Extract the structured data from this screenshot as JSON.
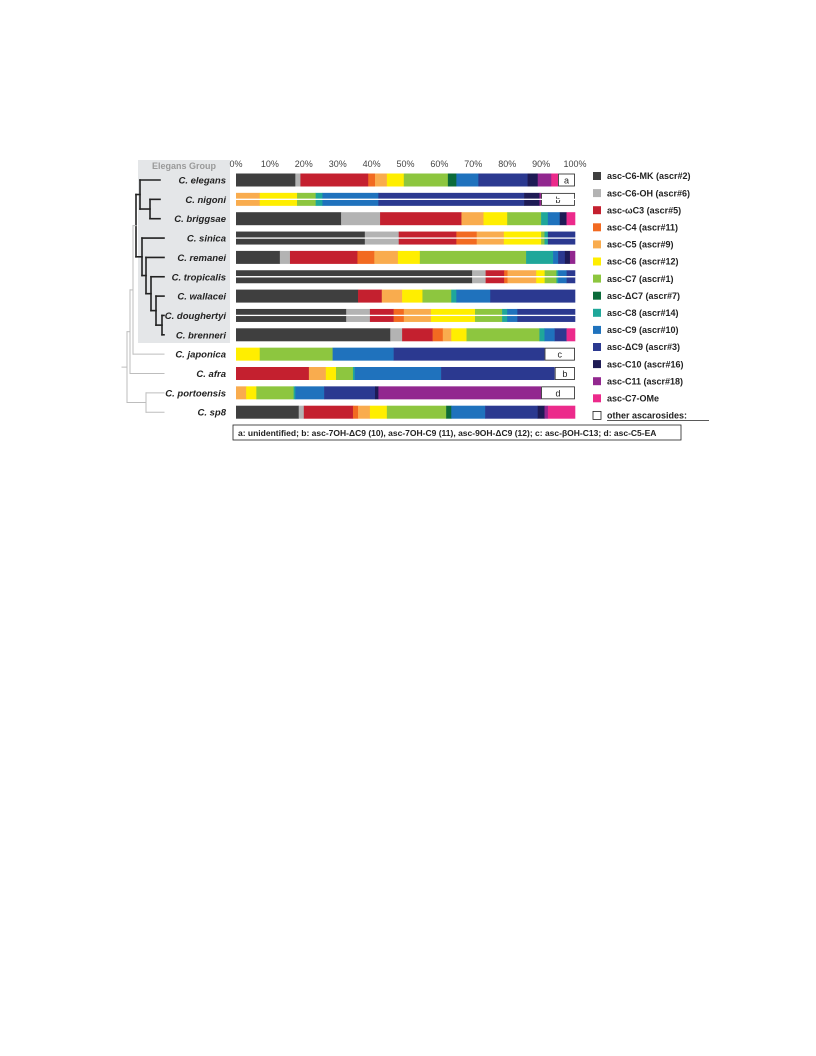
{
  "chart_data": {
    "type": "stacked-bar-horizontal",
    "group_label": "Elegans Group",
    "x_ticks": [
      "0%",
      "10%",
      "20%",
      "30%",
      "40%",
      "50%",
      "60%",
      "70%",
      "80%",
      "90%",
      "100%"
    ],
    "xlim": [
      0,
      100
    ],
    "components": [
      {
        "key": "MK",
        "name": "asc-C6-MK (ascr#2)",
        "color": "#3f3f3f"
      },
      {
        "key": "OH6",
        "name": "asc-C6-OH (ascr#6)",
        "color": "#b3b3b3"
      },
      {
        "key": "wC3",
        "name": "asc-ωC3 (ascr#5)",
        "color": "#c4202f"
      },
      {
        "key": "C4",
        "name": "asc-C4 (ascr#11)",
        "color": "#f26a21"
      },
      {
        "key": "C5",
        "name": "asc-C5 (ascr#9)",
        "color": "#f9ac4e"
      },
      {
        "key": "C6",
        "name": "asc-C6 (ascr#12)",
        "color": "#ffee00"
      },
      {
        "key": "C7",
        "name": "asc-C7 (ascr#1)",
        "color": "#8dc63f"
      },
      {
        "key": "dC7",
        "name": "asc-ΔC7 (ascr#7)",
        "color": "#0b6b3a"
      },
      {
        "key": "C8",
        "name": "asc-C8 (ascr#14)",
        "color": "#1fa79a"
      },
      {
        "key": "C9",
        "name": "asc-C9 (ascr#10)",
        "color": "#1f72bd"
      },
      {
        "key": "dC9",
        "name": "asc-ΔC9 (ascr#3)",
        "color": "#2b3990"
      },
      {
        "key": "C10",
        "name": "asc-C10 (ascr#16)",
        "color": "#1e1b55"
      },
      {
        "key": "C11",
        "name": "asc-C11 (ascr#18)",
        "color": "#92278f"
      },
      {
        "key": "OMe",
        "name": "asc-C7-OMe",
        "color": "#ec2a8b"
      },
      {
        "key": "other",
        "name": "other ascarosides:",
        "color": "#ffffff"
      }
    ],
    "series": [
      {
        "name": "C. elegans",
        "in_group": true,
        "double": false,
        "label": "a",
        "values": {
          "MK": 17.5,
          "OH6": 1.5,
          "wC3": 20,
          "C4": 2,
          "C5": 3.5,
          "C6": 5,
          "C7": 13,
          "dC7": 2.5,
          "C9": 6.5,
          "dC9": 14.5,
          "C10": 3,
          "C11": 4,
          "OMe": 2,
          "other": 5
        }
      },
      {
        "name": "C. nigoni",
        "in_group": true,
        "double": true,
        "label": "b",
        "values": {
          "C5": 7,
          "C6": 11,
          "C7": 5.5,
          "C8": 2,
          "C9": 16.5,
          "dC9": 43,
          "C10": 4.5,
          "C11": 0.5,
          "other": 10
        }
      },
      {
        "name": "C. briggsae",
        "in_group": true,
        "double": false,
        "label": "",
        "values": {
          "MK": 31,
          "OH6": 11.5,
          "wC3": 24,
          "C5": 6.5,
          "C6": 7,
          "C7": 10,
          "C8": 2,
          "C9": 3.5,
          "C10": 2,
          "OMe": 2.5
        }
      },
      {
        "name": "C. sinica",
        "in_group": true,
        "double": true,
        "label": "",
        "values": {
          "MK": 38,
          "OH6": 10,
          "wC3": 17,
          "C4": 6,
          "C5": 8,
          "C6": 11,
          "C7": 1,
          "C8": 1,
          "dC9": 8
        }
      },
      {
        "name": "C. remanei",
        "in_group": true,
        "double": false,
        "label": "",
        "values": {
          "MK": 13,
          "OH6": 3,
          "wC3": 20,
          "C4": 5,
          "C5": 7,
          "C6": 6.5,
          "C7": 31.5,
          "C8": 8,
          "C9": 1.5,
          "dC9": 2,
          "C10": 1.5,
          "C11": 1.5
        }
      },
      {
        "name": "C. tropicalis",
        "in_group": true,
        "double": true,
        "label": "",
        "values": {
          "MK": 70,
          "OH6": 4,
          "wC3": 5.5,
          "C4": 1,
          "C5": 8.5,
          "C6": 2.5,
          "C7": 3.5,
          "C8": 0.5,
          "C9": 2.5,
          "dC9": 2.5
        }
      },
      {
        "name": "C. wallacei",
        "in_group": true,
        "double": false,
        "label": "",
        "values": {
          "MK": 36,
          "wC3": 7,
          "C5": 6,
          "C6": 6,
          "C7": 8.5,
          "C8": 1.5,
          "C9": 10,
          "dC9": 25
        }
      },
      {
        "name": "C. doughertyi",
        "in_group": true,
        "double": true,
        "label": "",
        "values": {
          "MK": 32.5,
          "OH6": 7,
          "wC3": 7,
          "C4": 3,
          "C5": 8,
          "C6": 13,
          "C7": 8,
          "C8": 1.5,
          "C9": 3,
          "dC9": 17
        }
      },
      {
        "name": "C. brenneri",
        "in_group": true,
        "double": false,
        "label": "",
        "values": {
          "MK": 45.5,
          "OH6": 3.5,
          "wC3": 9,
          "C4": 3,
          "C5": 2.5,
          "C6": 4.5,
          "C7": 21.5,
          "C8": 1.5,
          "C9": 3,
          "dC9": 3.5,
          "OMe": 2.5
        }
      },
      {
        "name": "C. japonica",
        "in_group": false,
        "double": false,
        "label": "c",
        "values": {
          "C6": 7,
          "C7": 21.5,
          "C9": 18,
          "dC9": 44.5,
          "other": 9
        }
      },
      {
        "name": "C. afra",
        "in_group": false,
        "double": false,
        "label": "b",
        "values": {
          "wC3": 21.5,
          "C5": 5,
          "C6": 3,
          "C7": 5,
          "C8": 0.5,
          "C9": 25.5,
          "dC9": 33.5,
          "other": 6
        }
      },
      {
        "name": "C. portoensis",
        "in_group": false,
        "double": false,
        "label": "d",
        "values": {
          "C5": 3,
          "C6": 3,
          "C7": 11,
          "C8": 0.5,
          "C9": 8.5,
          "dC9": 15,
          "C10": 1,
          "C11": 48,
          "other": 10
        }
      },
      {
        "name": "C. sp8",
        "in_group": false,
        "double": false,
        "label": "",
        "values": {
          "MK": 18.5,
          "OH6": 1.5,
          "wC3": 14.5,
          "C4": 1.5,
          "C5": 3.5,
          "C6": 5,
          "C7": 17.5,
          "dC7": 1.5,
          "C9": 10,
          "dC9": 15.5,
          "C10": 2,
          "C11": 1,
          "OMe": 8
        }
      }
    ],
    "footnote": "a: unidentified; b: asc-7OH-ΔC9 (10), asc-7OH-C9 (11), asc-9OH-ΔC9 (12); c: asc-βOH-C13; d: asc-C5-EA"
  }
}
